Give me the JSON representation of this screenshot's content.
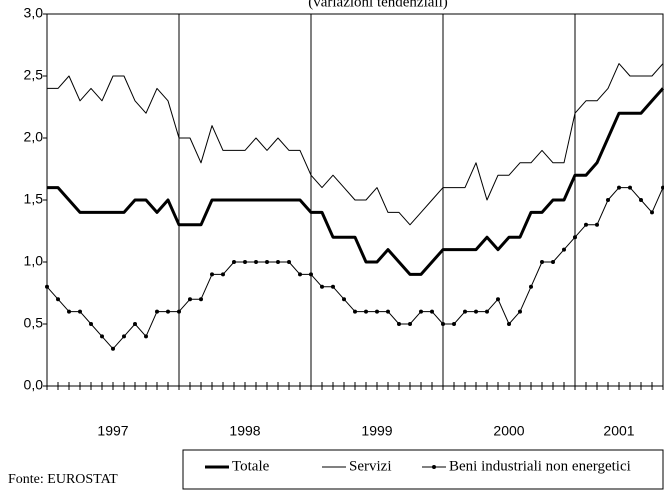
{
  "chart_data": {
    "type": "line",
    "title": "(variazioni tendenziali)",
    "source": "Fonte: EUROSTAT",
    "categories": [
      null,
      null,
      null,
      null,
      null,
      null,
      "1997",
      null,
      null,
      null,
      null,
      null,
      null,
      null,
      null,
      null,
      null,
      null,
      "1998",
      null,
      null,
      null,
      null,
      null,
      null,
      null,
      null,
      null,
      null,
      null,
      "1999",
      null,
      null,
      null,
      null,
      null,
      null,
      null,
      null,
      null,
      null,
      null,
      "2000",
      null,
      null,
      null,
      null,
      null,
      null,
      null,
      null,
      null,
      "2001",
      null,
      null,
      null,
      null
    ],
    "ylim": [
      0,
      3
    ],
    "yticks": [
      {
        "value": 0,
        "label": "0,0"
      },
      {
        "value": 0.5,
        "label": "0,5"
      },
      {
        "value": 1,
        "label": "1,0"
      },
      {
        "value": 1.5,
        "label": "1,5"
      },
      {
        "value": 2,
        "label": "2,0"
      },
      {
        "value": 2.5,
        "label": "2,5"
      },
      {
        "value": 3,
        "label": "3,0"
      }
    ],
    "series": [
      {
        "name": "Totale",
        "color": "#000000",
        "line_width": 3,
        "values": [
          1.6,
          1.6,
          1.5,
          1.4,
          1.4,
          1.4,
          1.4,
          1.4,
          1.5,
          1.5,
          1.4,
          1.5,
          1.3,
          1.3,
          1.3,
          1.5,
          1.5,
          1.5,
          1.5,
          1.5,
          1.5,
          1.5,
          1.5,
          1.5,
          1.4,
          1.4,
          1.2,
          1.2,
          1.2,
          1.0,
          1.0,
          1.1,
          1.0,
          0.9,
          0.9,
          1.0,
          1.1,
          1.1,
          1.1,
          1.1,
          1.2,
          1.1,
          1.2,
          1.2,
          1.4,
          1.4,
          1.5,
          1.5,
          1.7,
          1.7,
          1.8,
          2.0,
          2.2,
          2.2,
          2.2,
          2.3,
          2.4
        ]
      },
      {
        "name": "Servizi",
        "color": "#000000",
        "line_width": 1,
        "values": [
          2.4,
          2.4,
          2.5,
          2.3,
          2.4,
          2.3,
          2.5,
          2.5,
          2.3,
          2.2,
          2.4,
          2.3,
          2.0,
          2.0,
          1.8,
          2.1,
          1.9,
          1.9,
          1.9,
          2.0,
          1.9,
          2.0,
          1.9,
          1.9,
          1.7,
          1.6,
          1.7,
          1.6,
          1.5,
          1.5,
          1.6,
          1.4,
          1.4,
          1.3,
          1.4,
          1.5,
          1.6,
          1.6,
          1.6,
          1.8,
          1.5,
          1.7,
          1.7,
          1.8,
          1.8,
          1.9,
          1.8,
          1.8,
          2.2,
          2.3,
          2.3,
          2.4,
          2.6,
          2.5,
          2.5,
          2.5,
          2.6
        ]
      },
      {
        "name": "Beni industriali non energetici",
        "color": "#000000",
        "line_width": 1,
        "marker": "dot",
        "values": [
          0.8,
          0.7,
          0.6,
          0.6,
          0.5,
          0.4,
          0.3,
          0.4,
          0.5,
          0.4,
          0.6,
          0.6,
          0.6,
          0.7,
          0.7,
          0.9,
          0.9,
          1.0,
          1.0,
          1.0,
          1.0,
          1.0,
          1.0,
          0.9,
          0.9,
          0.8,
          0.8,
          0.7,
          0.6,
          0.6,
          0.6,
          0.6,
          0.5,
          0.5,
          0.6,
          0.6,
          0.5,
          0.5,
          0.6,
          0.6,
          0.6,
          0.7,
          0.5,
          0.6,
          0.8,
          1.0,
          1.0,
          1.1,
          1.2,
          1.3,
          1.3,
          1.5,
          1.6,
          1.6,
          1.5,
          1.4,
          1.6
        ]
      }
    ]
  }
}
